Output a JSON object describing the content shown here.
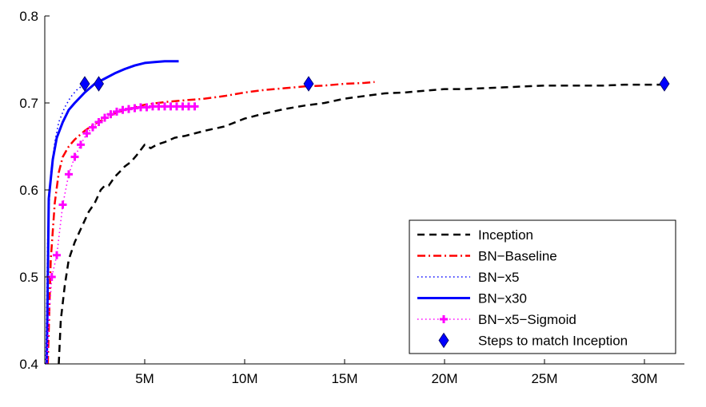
{
  "chart_data": {
    "type": "line",
    "title": "",
    "xlabel": "",
    "ylabel": "",
    "xlim": [
      0,
      32000000
    ],
    "ylim": [
      0.4,
      0.8
    ],
    "x_ticks": [
      {
        "value": 5000000,
        "label": "5M"
      },
      {
        "value": 10000000,
        "label": "10M"
      },
      {
        "value": 15000000,
        "label": "15M"
      },
      {
        "value": 20000000,
        "label": "20M"
      },
      {
        "value": 25000000,
        "label": "25M"
      },
      {
        "value": 30000000,
        "label": "30M"
      }
    ],
    "y_ticks": [
      {
        "value": 0.4,
        "label": "0.4"
      },
      {
        "value": 0.5,
        "label": "0.5"
      },
      {
        "value": 0.6,
        "label": "0.6"
      },
      {
        "value": 0.7,
        "label": "0.7"
      },
      {
        "value": 0.8,
        "label": "0.8"
      }
    ],
    "grid": false,
    "legend_position": "bottom-right",
    "series": [
      {
        "name": "Inception",
        "color": "#000000",
        "style": "dashed",
        "x": [
          700000,
          800000,
          1000000,
          1200000,
          1500000,
          1800000,
          2000000,
          2200000,
          2500000,
          2800000,
          3000000,
          3200000,
          3500000,
          3800000,
          4000000,
          4300000,
          4600000,
          5000000,
          5300000,
          5600000,
          6000000,
          6500000,
          7000000,
          8000000,
          9000000,
          10000000,
          11000000,
          12000000,
          13000000,
          14000000,
          15000000,
          16000000,
          17000000,
          18000000,
          19000000,
          20000000,
          21000000,
          22000000,
          23000000,
          24000000,
          25000000,
          26000000,
          27000000,
          28000000,
          29000000,
          30000000,
          31000000
        ],
        "y": [
          0.4,
          0.45,
          0.49,
          0.52,
          0.54,
          0.555,
          0.565,
          0.575,
          0.585,
          0.6,
          0.605,
          0.605,
          0.615,
          0.622,
          0.627,
          0.632,
          0.64,
          0.652,
          0.648,
          0.652,
          0.655,
          0.66,
          0.662,
          0.668,
          0.673,
          0.682,
          0.688,
          0.693,
          0.697,
          0.7,
          0.705,
          0.708,
          0.711,
          0.712,
          0.714,
          0.716,
          0.716,
          0.717,
          0.718,
          0.719,
          0.72,
          0.72,
          0.72,
          0.72,
          0.721,
          0.721,
          0.721
        ]
      },
      {
        "name": "BN−Baseline",
        "color": "#ff0000",
        "style": "dashdot",
        "x": [
          150000,
          300000,
          500000,
          700000,
          900000,
          1200000,
          1500000,
          2000000,
          2500000,
          3000000,
          3500000,
          4000000,
          5000000,
          6000000,
          7000000,
          8000000,
          9000000,
          10000000,
          11000000,
          12000000,
          13000000,
          14000000,
          15000000,
          16000000,
          16500000
        ],
        "y": [
          0.4,
          0.52,
          0.585,
          0.62,
          0.638,
          0.65,
          0.658,
          0.668,
          0.676,
          0.682,
          0.688,
          0.692,
          0.698,
          0.701,
          0.703,
          0.705,
          0.708,
          0.712,
          0.715,
          0.717,
          0.719,
          0.72,
          0.722,
          0.723,
          0.724
        ]
      },
      {
        "name": "BN−x5",
        "color": "#0000ff",
        "style": "dotted",
        "x": [
          50000,
          150000,
          300000,
          500000,
          700000,
          1000000,
          1300000,
          1600000,
          2000000
        ],
        "y": [
          0.4,
          0.55,
          0.62,
          0.655,
          0.678,
          0.695,
          0.707,
          0.715,
          0.722
        ]
      },
      {
        "name": "BN−x30",
        "color": "#0000ff",
        "style": "solid",
        "x": [
          100000,
          200000,
          400000,
          600000,
          900000,
          1200000,
          1500000,
          2000000,
          2500000,
          3000000,
          3500000,
          4000000,
          4500000,
          5000000,
          5500000,
          6000000,
          6500000,
          6700000
        ],
        "y": [
          0.4,
          0.59,
          0.635,
          0.66,
          0.678,
          0.692,
          0.7,
          0.712,
          0.722,
          0.728,
          0.734,
          0.739,
          0.743,
          0.746,
          0.747,
          0.748,
          0.748,
          0.748
        ]
      },
      {
        "name": "BN−x5−Sigmoid",
        "color": "#ff00ff",
        "style": "dotted-plus",
        "x": [
          100000,
          200000,
          350000,
          600000,
          900000,
          1200000,
          1500000,
          1800000,
          2100000,
          2400000,
          2700000,
          3000000,
          3300000,
          3600000,
          3900000,
          4200000,
          4500000,
          4800000,
          5100000,
          5400000,
          5700000,
          6000000,
          6300000,
          6600000,
          6900000,
          7200000,
          7500000
        ],
        "y": [
          0.4,
          0.45,
          0.5,
          0.525,
          0.583,
          0.618,
          0.638,
          0.652,
          0.665,
          0.672,
          0.678,
          0.683,
          0.687,
          0.69,
          0.692,
          0.693,
          0.694,
          0.695,
          0.695,
          0.696,
          0.696,
          0.696,
          0.696,
          0.696,
          0.696,
          0.696,
          0.696
        ]
      },
      {
        "name": "Steps to match Inception",
        "color": "#0000ff",
        "style": "marker-diamond",
        "x": [
          2000000,
          2700000,
          13200000,
          31000000
        ],
        "y": [
          0.722,
          0.722,
          0.722,
          0.722
        ]
      }
    ]
  }
}
